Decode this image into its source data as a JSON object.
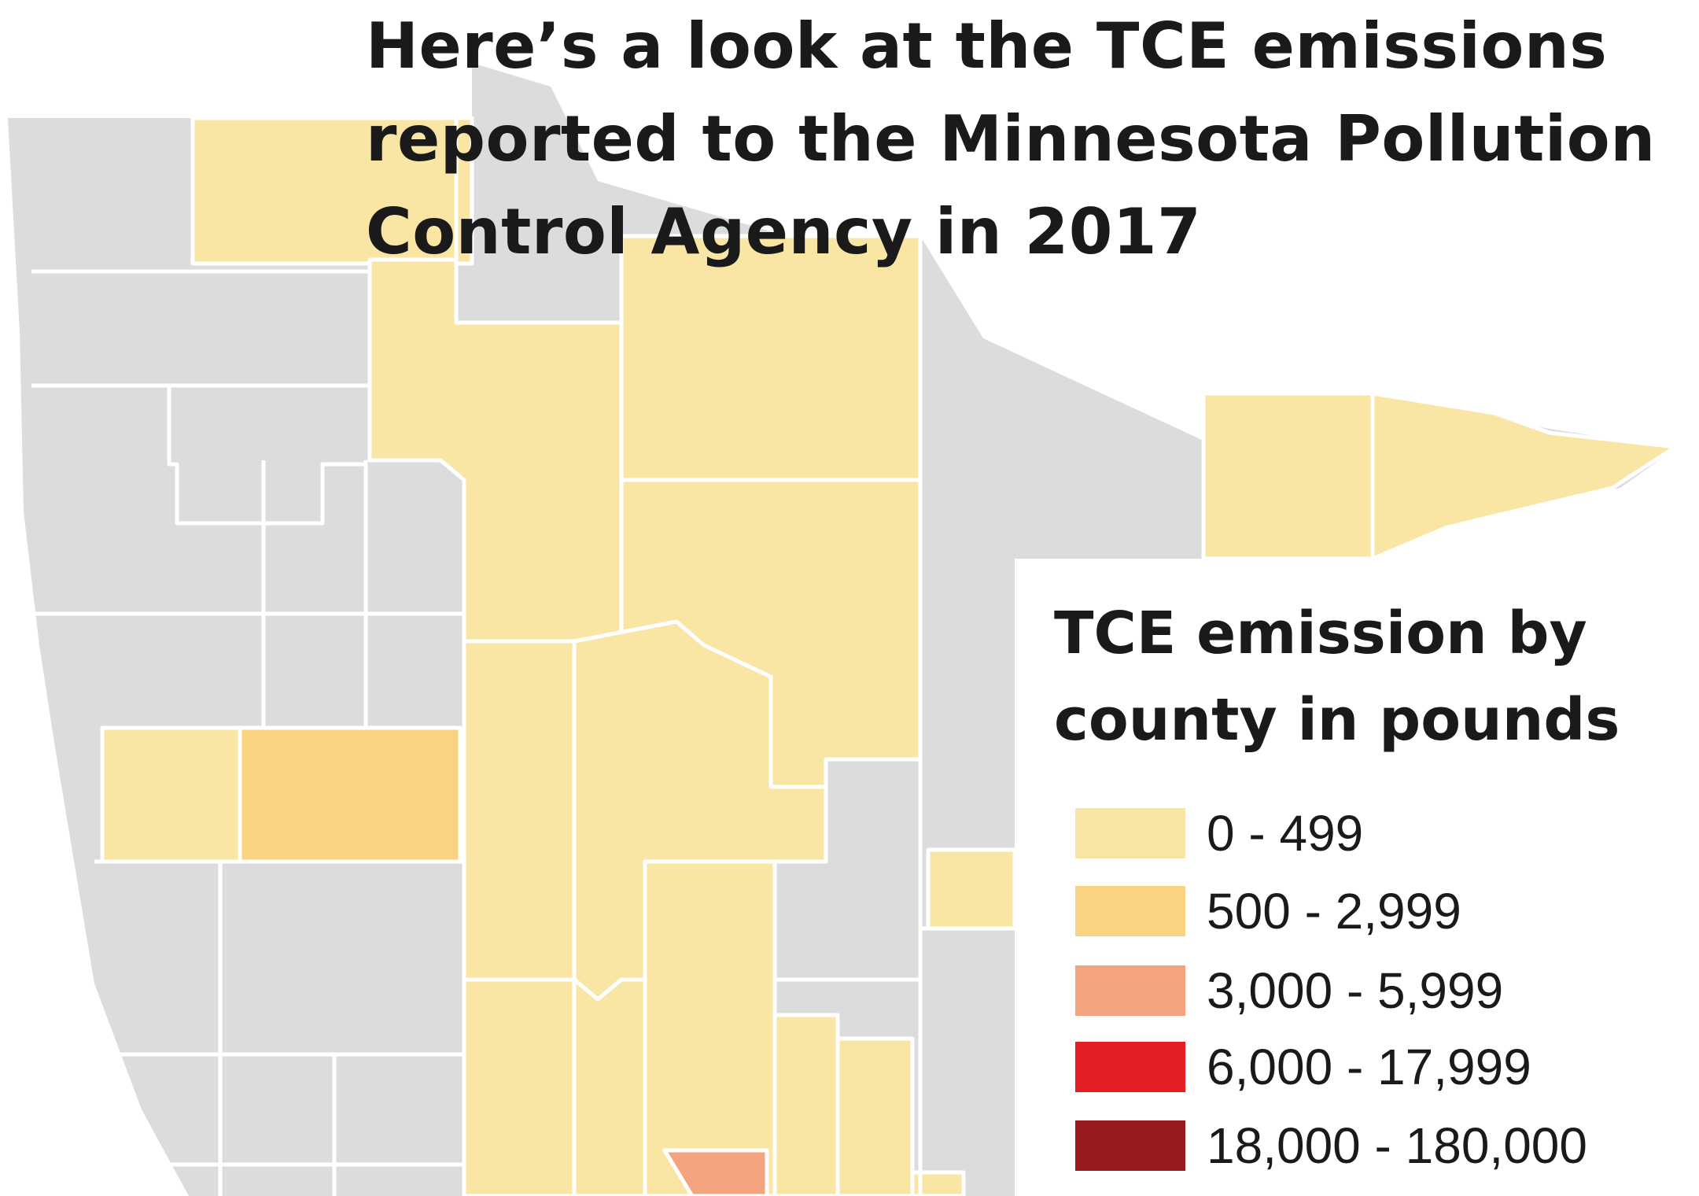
{
  "title_lines": [
    "Here’s a look at the TCE emissions",
    "reported to the Minnesota Pollution",
    "Control Agency in 2017"
  ],
  "legend": {
    "title_lines": [
      "TCE emission by",
      "county in pounds"
    ],
    "items": [
      {
        "label": "0 - 499",
        "color": "#fae6a4"
      },
      {
        "label": "500 - 2,999",
        "color": "#fad382"
      },
      {
        "label": "3,000 - 5,999",
        "color": "#f3a47f"
      },
      {
        "label": "6,000 - 17,999",
        "color": "#e31e24"
      },
      {
        "label": "18,000 - 180,000",
        "color": "#971b1e"
      }
    ]
  },
  "colors": {
    "no_data": "#dcdcdc",
    "background": "#ffffff",
    "border": "#ffffff"
  }
}
